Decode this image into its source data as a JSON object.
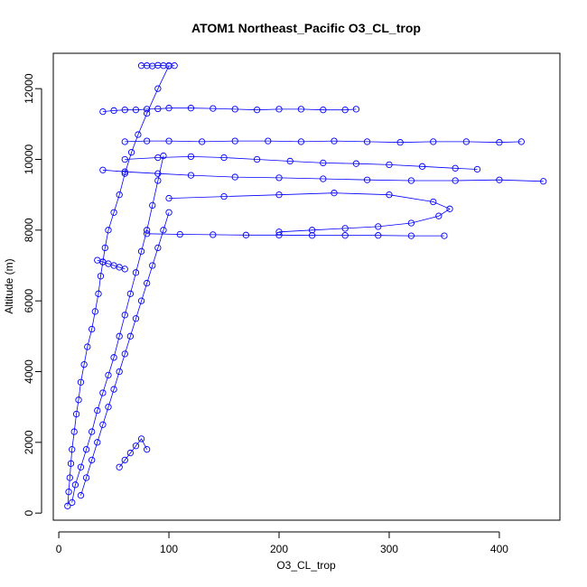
{
  "chart_data": {
    "type": "scatter",
    "title": "ATOM1 Northeast_Pacific O3_CL_trop",
    "xlabel": "O3_CL_trop",
    "ylabel": "Altitude (m)",
    "xlim": [
      -5,
      455
    ],
    "ylim": [
      -200,
      13000
    ],
    "xticks": [
      0,
      100,
      200,
      300,
      400
    ],
    "yticks": [
      0,
      2000,
      4000,
      6000,
      8000,
      10000,
      12000
    ],
    "grid": false,
    "marker": "open-circle",
    "connected": true,
    "color": "#0000ff",
    "series": [
      {
        "x": [
          8,
          9,
          10,
          11,
          12,
          14,
          16,
          18,
          20,
          23,
          26,
          30,
          33,
          36,
          38,
          40,
          42,
          45,
          50,
          55,
          60,
          66,
          72,
          80,
          90,
          100
        ],
        "y": [
          200,
          600,
          1000,
          1400,
          1800,
          2300,
          2800,
          3200,
          3700,
          4200,
          4700,
          5200,
          5700,
          6200,
          6700,
          7100,
          7500,
          8000,
          8500,
          9000,
          9600,
          10200,
          10700,
          11300,
          12000,
          12650
        ]
      },
      {
        "x": [
          12,
          15,
          20,
          25,
          30,
          35,
          40,
          45,
          50,
          55,
          60,
          65,
          70,
          75,
          80,
          85,
          90,
          95
        ],
        "y": [
          300,
          800,
          1300,
          1800,
          2300,
          2900,
          3400,
          3900,
          4400,
          5000,
          5600,
          6200,
          6800,
          7400,
          8000,
          8700,
          9400,
          10100
        ]
      },
      {
        "x": [
          20,
          25,
          30,
          35,
          40,
          45,
          50,
          55,
          60,
          65,
          70,
          75,
          80,
          85,
          90,
          95,
          100
        ],
        "y": [
          500,
          1000,
          1500,
          2000,
          2500,
          3000,
          3500,
          4000,
          4500,
          5000,
          5500,
          6000,
          6500,
          7000,
          7500,
          8000,
          8500
        ]
      },
      {
        "x": [
          40,
          50,
          60,
          70,
          80,
          90,
          100,
          120,
          140,
          160,
          180,
          200,
          220,
          240,
          260,
          270
        ],
        "y": [
          11350,
          11380,
          11400,
          11400,
          11420,
          11430,
          11450,
          11450,
          11440,
          11420,
          11400,
          11420,
          11420,
          11400,
          11400,
          11420
        ]
      },
      {
        "x": [
          60,
          80,
          100,
          130,
          160,
          190,
          220,
          250,
          280,
          310,
          340,
          370,
          400,
          420
        ],
        "y": [
          10500,
          10520,
          10520,
          10500,
          10520,
          10520,
          10500,
          10520,
          10500,
          10480,
          10500,
          10500,
          10480,
          10500
        ]
      },
      {
        "x": [
          60,
          90,
          120,
          150,
          180,
          210,
          240,
          270,
          300,
          330,
          360,
          380
        ],
        "y": [
          10000,
          10050,
          10080,
          10050,
          10000,
          9950,
          9900,
          9880,
          9850,
          9800,
          9750,
          9720
        ]
      },
      {
        "x": [
          40,
          60,
          90,
          120,
          160,
          200,
          240,
          280,
          320,
          360,
          400,
          440
        ],
        "y": [
          9700,
          9650,
          9600,
          9550,
          9500,
          9480,
          9450,
          9420,
          9400,
          9400,
          9420,
          9380
        ]
      },
      {
        "x": [
          100,
          150,
          200,
          250,
          300,
          340,
          355,
          345,
          320,
          290,
          260,
          230,
          200
        ],
        "y": [
          8900,
          8950,
          9000,
          9050,
          9000,
          8800,
          8600,
          8400,
          8200,
          8100,
          8050,
          8000,
          7950
        ]
      },
      {
        "x": [
          80,
          110,
          140,
          170,
          200,
          230,
          260,
          290,
          320,
          350
        ],
        "y": [
          7900,
          7880,
          7870,
          7860,
          7860,
          7850,
          7850,
          7850,
          7840,
          7840
        ]
      },
      {
        "x": [
          75,
          80,
          85,
          90,
          95,
          100,
          105
        ],
        "y": [
          12650,
          12650,
          12640,
          12660,
          12650,
          12640,
          12650
        ]
      },
      {
        "x": [
          35,
          40,
          45,
          50,
          55,
          60
        ],
        "y": [
          7150,
          7100,
          7050,
          7000,
          6950,
          6900
        ]
      },
      {
        "x": [
          55,
          60,
          65,
          70,
          75,
          80
        ],
        "y": [
          1300,
          1500,
          1700,
          1900,
          2100,
          1800
        ]
      }
    ]
  }
}
